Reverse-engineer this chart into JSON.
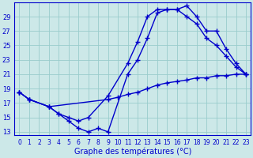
{
  "xlabel": "Graphe des températures (°C)",
  "background_color": "#cce8e8",
  "line_color": "#0000cc",
  "curve1_x": [
    0,
    1,
    3,
    4,
    5,
    6,
    7,
    9,
    11,
    12,
    13,
    14,
    15,
    16,
    17,
    18,
    19,
    20,
    21,
    22,
    23
  ],
  "curve1_y": [
    18.5,
    17.5,
    16.5,
    15.5,
    15.0,
    14.5,
    15.0,
    18.0,
    22.5,
    25.5,
    29.0,
    30.0,
    30.0,
    30.0,
    30.5,
    29.0,
    27.0,
    27.0,
    24.5,
    22.5,
    21.0
  ],
  "curve2_x": [
    0,
    1,
    3,
    4,
    5,
    6,
    7,
    8,
    9,
    11,
    12,
    13,
    14,
    15,
    16,
    17,
    18,
    19,
    20,
    21,
    22,
    23
  ],
  "curve2_y": [
    18.5,
    17.5,
    16.5,
    15.5,
    14.5,
    13.5,
    13.0,
    13.5,
    13.0,
    21.0,
    23.0,
    26.0,
    29.5,
    30.0,
    30.0,
    29.0,
    28.0,
    26.0,
    25.0,
    23.5,
    22.0,
    21.0
  ],
  "curve3_x": [
    0,
    1,
    3,
    9,
    10,
    11,
    12,
    13,
    14,
    15,
    16,
    17,
    18,
    19,
    20,
    21,
    22,
    23
  ],
  "curve3_y": [
    18.5,
    17.5,
    16.5,
    17.5,
    17.8,
    18.2,
    18.5,
    19.0,
    19.5,
    19.8,
    20.0,
    20.2,
    20.5,
    20.5,
    20.8,
    20.8,
    21.0,
    21.0
  ],
  "ylim_min": 12.5,
  "ylim_max": 31.0,
  "yticks": [
    13,
    15,
    17,
    19,
    21,
    23,
    25,
    27,
    29
  ],
  "xticks": [
    0,
    1,
    2,
    3,
    4,
    5,
    6,
    7,
    8,
    9,
    10,
    11,
    12,
    13,
    14,
    15,
    16,
    17,
    18,
    19,
    20,
    21,
    22,
    23
  ],
  "grid_color": "#99cccc",
  "axis_color": "#0000cc",
  "text_color": "#0000cc",
  "tick_fontsize": 5.5,
  "xlabel_fontsize": 7.0,
  "linewidth": 1.0,
  "marker": "+",
  "markersize": 4,
  "markeredgewidth": 1.0
}
